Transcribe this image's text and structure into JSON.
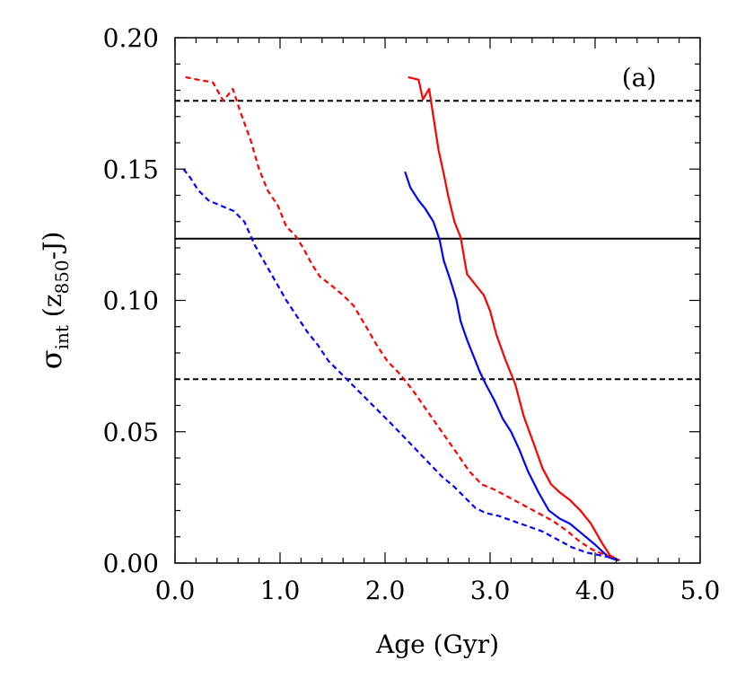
{
  "chart_data": {
    "type": "line",
    "panel_label": "(a)",
    "xlabel": "Age (Gyr)",
    "ylabel": {
      "base": "σ",
      "subscript": "int",
      "open": " (z",
      "inner_subscript": "850",
      "close": "-J)"
    },
    "xlim": [
      0.0,
      5.0
    ],
    "ylim": [
      0.0,
      0.2
    ],
    "xticks": [
      "0.0",
      "1.0",
      "2.0",
      "3.0",
      "4.0",
      "5.0"
    ],
    "yticks": [
      "0.00",
      "0.05",
      "0.10",
      "0.15",
      "0.20"
    ],
    "legend": "none",
    "grid": false,
    "hlines": [
      {
        "y": 0.1235,
        "style": "solid",
        "color": "#000000"
      },
      {
        "y": 0.176,
        "style": "dashed",
        "color": "#000000"
      },
      {
        "y": 0.07,
        "style": "dashed",
        "color": "#000000"
      }
    ],
    "series": [
      {
        "color": "#ff0000",
        "style": "solid",
        "points": [
          [
            2.22,
            0.185
          ],
          [
            2.32,
            0.184
          ],
          [
            2.36,
            0.1765
          ],
          [
            2.42,
            0.1805
          ],
          [
            2.46,
            0.17
          ],
          [
            2.51,
            0.157
          ],
          [
            2.56,
            0.148
          ],
          [
            2.6,
            0.14
          ],
          [
            2.66,
            0.13
          ],
          [
            2.72,
            0.124
          ],
          [
            2.78,
            0.11
          ],
          [
            2.86,
            0.106
          ],
          [
            2.94,
            0.102
          ],
          [
            3.0,
            0.096
          ],
          [
            3.06,
            0.087
          ],
          [
            3.14,
            0.078
          ],
          [
            3.24,
            0.068
          ],
          [
            3.32,
            0.056
          ],
          [
            3.42,
            0.045
          ],
          [
            3.5,
            0.036
          ],
          [
            3.58,
            0.03
          ],
          [
            3.66,
            0.027
          ],
          [
            3.76,
            0.024
          ],
          [
            3.86,
            0.02
          ],
          [
            3.96,
            0.015
          ],
          [
            4.06,
            0.008
          ],
          [
            4.14,
            0.003
          ],
          [
            4.22,
            0.001
          ]
        ]
      },
      {
        "color": "#0000ff",
        "style": "solid",
        "points": [
          [
            2.19,
            0.149
          ],
          [
            2.24,
            0.143
          ],
          [
            2.32,
            0.138
          ],
          [
            2.38,
            0.135
          ],
          [
            2.46,
            0.13
          ],
          [
            2.52,
            0.123
          ],
          [
            2.56,
            0.115
          ],
          [
            2.62,
            0.108
          ],
          [
            2.68,
            0.1
          ],
          [
            2.72,
            0.092
          ],
          [
            2.78,
            0.085
          ],
          [
            2.84,
            0.079
          ],
          [
            2.9,
            0.073
          ],
          [
            2.96,
            0.068
          ],
          [
            3.04,
            0.062
          ],
          [
            3.12,
            0.055
          ],
          [
            3.2,
            0.05
          ],
          [
            3.28,
            0.043
          ],
          [
            3.36,
            0.035
          ],
          [
            3.46,
            0.027
          ],
          [
            3.56,
            0.02
          ],
          [
            3.66,
            0.017
          ],
          [
            3.76,
            0.015
          ],
          [
            3.88,
            0.011
          ],
          [
            4.0,
            0.007
          ],
          [
            4.08,
            0.004
          ],
          [
            4.14,
            0.002
          ],
          [
            4.22,
            0.001
          ]
        ]
      },
      {
        "color": "#ff0000",
        "style": "dashed",
        "points": [
          [
            0.1,
            0.185
          ],
          [
            0.22,
            0.184
          ],
          [
            0.36,
            0.183
          ],
          [
            0.46,
            0.176
          ],
          [
            0.55,
            0.1805
          ],
          [
            0.62,
            0.172
          ],
          [
            0.72,
            0.161
          ],
          [
            0.8,
            0.15
          ],
          [
            0.88,
            0.142
          ],
          [
            0.98,
            0.136
          ],
          [
            1.06,
            0.128
          ],
          [
            1.14,
            0.125
          ],
          [
            1.22,
            0.12
          ],
          [
            1.3,
            0.114
          ],
          [
            1.38,
            0.109
          ],
          [
            1.48,
            0.106
          ],
          [
            1.6,
            0.102
          ],
          [
            1.7,
            0.098
          ],
          [
            1.82,
            0.09
          ],
          [
            1.92,
            0.083
          ],
          [
            2.02,
            0.077
          ],
          [
            2.14,
            0.072
          ],
          [
            2.26,
            0.066
          ],
          [
            2.4,
            0.058
          ],
          [
            2.54,
            0.05
          ],
          [
            2.68,
            0.042
          ],
          [
            2.8,
            0.035
          ],
          [
            2.92,
            0.03
          ],
          [
            3.04,
            0.028
          ],
          [
            3.18,
            0.025
          ],
          [
            3.32,
            0.022
          ],
          [
            3.46,
            0.019
          ],
          [
            3.6,
            0.016
          ],
          [
            3.74,
            0.012
          ],
          [
            3.86,
            0.008
          ],
          [
            3.98,
            0.005
          ],
          [
            4.1,
            0.003
          ],
          [
            4.24,
            0.001
          ]
        ]
      },
      {
        "color": "#0000ff",
        "style": "dashed",
        "points": [
          [
            0.08,
            0.15
          ],
          [
            0.14,
            0.147
          ],
          [
            0.22,
            0.142
          ],
          [
            0.32,
            0.138
          ],
          [
            0.44,
            0.136
          ],
          [
            0.56,
            0.134
          ],
          [
            0.66,
            0.13
          ],
          [
            0.76,
            0.121
          ],
          [
            0.86,
            0.114
          ],
          [
            0.96,
            0.107
          ],
          [
            1.06,
            0.1
          ],
          [
            1.16,
            0.094
          ],
          [
            1.26,
            0.088
          ],
          [
            1.36,
            0.083
          ],
          [
            1.46,
            0.077
          ],
          [
            1.56,
            0.073
          ],
          [
            1.66,
            0.069
          ],
          [
            1.76,
            0.065
          ],
          [
            1.86,
            0.061
          ],
          [
            1.96,
            0.057
          ],
          [
            2.06,
            0.053
          ],
          [
            2.18,
            0.048
          ],
          [
            2.3,
            0.043
          ],
          [
            2.42,
            0.038
          ],
          [
            2.54,
            0.033
          ],
          [
            2.66,
            0.029
          ],
          [
            2.76,
            0.025
          ],
          [
            2.86,
            0.021
          ],
          [
            2.96,
            0.019
          ],
          [
            3.08,
            0.018
          ],
          [
            3.22,
            0.016
          ],
          [
            3.36,
            0.014
          ],
          [
            3.5,
            0.012
          ],
          [
            3.64,
            0.009
          ],
          [
            3.78,
            0.006
          ],
          [
            3.92,
            0.004
          ],
          [
            4.04,
            0.003
          ],
          [
            4.16,
            0.002
          ],
          [
            4.22,
            0.001
          ]
        ]
      }
    ]
  }
}
